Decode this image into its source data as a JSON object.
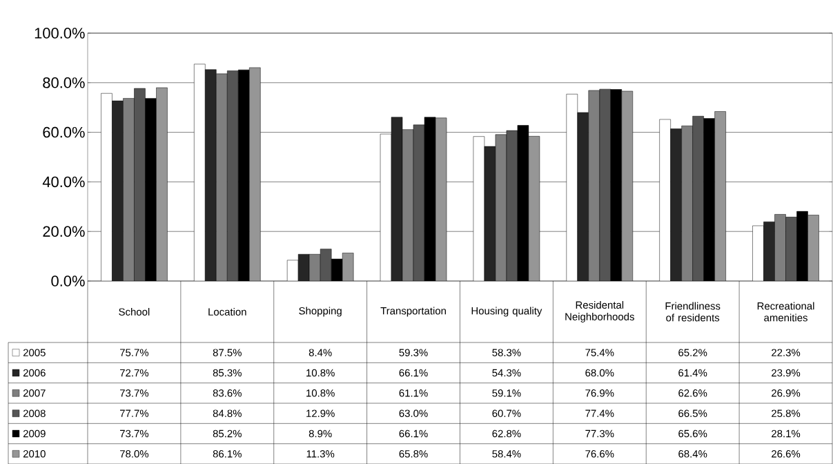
{
  "chart_data": {
    "type": "bar",
    "categories": [
      "School",
      "Location",
      "Shopping",
      "Transportation",
      "Housing quality",
      "Residental Neighborhoods",
      "Friendliness of residents",
      "Recreational amenities"
    ],
    "series": [
      {
        "name": "2005",
        "color": "#ffffff",
        "values": [
          75.7,
          87.5,
          8.4,
          59.3,
          58.3,
          75.4,
          65.2,
          22.3
        ],
        "value_labels": [
          "75.7%",
          "87.5%",
          "8.4%",
          "59.3%",
          "58.3%",
          "75.4%",
          "65.2%",
          "22.3%"
        ]
      },
      {
        "name": "2006",
        "color": "#262626",
        "values": [
          72.7,
          85.3,
          10.8,
          66.1,
          54.3,
          68.0,
          61.4,
          23.9
        ],
        "value_labels": [
          "72.7%",
          "85.3%",
          "10.8%",
          "66.1%",
          "54.3%",
          "68.0%",
          "61.4%",
          "23.9%"
        ]
      },
      {
        "name": "2007",
        "color": "#7f7f7f",
        "values": [
          73.7,
          83.6,
          10.8,
          61.1,
          59.1,
          76.9,
          62.6,
          26.9
        ],
        "value_labels": [
          "73.7%",
          "83.6%",
          "10.8%",
          "61.1%",
          "59.1%",
          "76.9%",
          "62.6%",
          "26.9%"
        ]
      },
      {
        "name": "2008",
        "color": "#555555",
        "values": [
          77.7,
          84.8,
          12.9,
          63.0,
          60.7,
          77.4,
          66.5,
          25.8
        ],
        "value_labels": [
          "77.7%",
          "84.8%",
          "12.9%",
          "63.0%",
          "60.7%",
          "77.4%",
          "66.5%",
          "25.8%"
        ]
      },
      {
        "name": "2009",
        "color": "#000000",
        "values": [
          73.7,
          85.2,
          8.9,
          66.1,
          62.8,
          77.3,
          65.6,
          28.1
        ],
        "value_labels": [
          "73.7%",
          "85.2%",
          "8.9%",
          "66.1%",
          "62.8%",
          "77.3%",
          "65.6%",
          "28.1%"
        ]
      },
      {
        "name": "2010",
        "color": "#969696",
        "values": [
          78.0,
          86.1,
          11.3,
          65.8,
          58.4,
          76.6,
          68.4,
          26.6
        ],
        "value_labels": [
          "78.0%",
          "86.1%",
          "11.3%",
          "65.8%",
          "58.4%",
          "76.6%",
          "68.4%",
          "26.6%"
        ]
      }
    ],
    "ylim": [
      0,
      100
    ],
    "yticks": [
      {
        "value": 0,
        "label": "0.0%"
      },
      {
        "value": 20,
        "label": "20.0%"
      },
      {
        "value": 40,
        "label": "40.0%"
      },
      {
        "value": 60,
        "label": "60.0%"
      },
      {
        "value": 80,
        "label": "80.0%"
      },
      {
        "value": 100,
        "label": "100.0%"
      }
    ],
    "grid": "y",
    "legend": "bottom left"
  }
}
